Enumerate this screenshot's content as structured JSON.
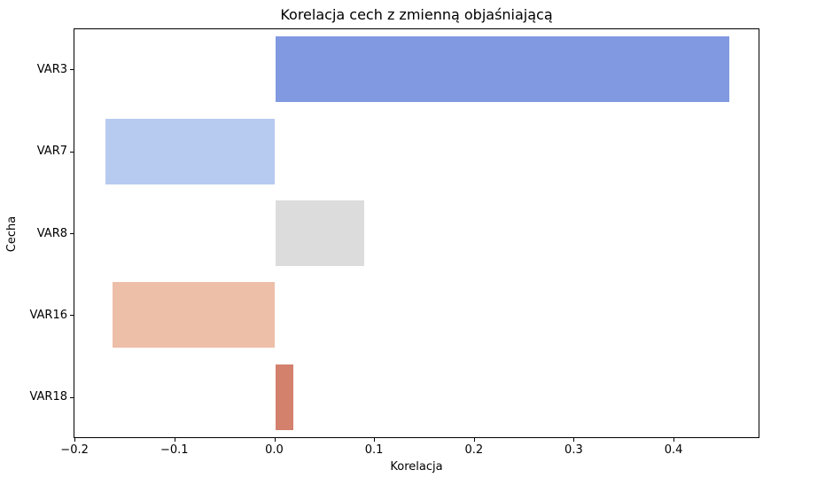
{
  "chart_data": {
    "type": "bar",
    "orientation": "horizontal",
    "title": "Korelacja cech z zmienną objaśniającą",
    "xlabel": "Korelacja",
    "ylabel": "Cecha",
    "categories": [
      "VAR3",
      "VAR7",
      "VAR8",
      "VAR16",
      "VAR18"
    ],
    "values": [
      0.455,
      -0.17,
      0.089,
      -0.163,
      0.018
    ],
    "bar_colors": [
      "#8199e1",
      "#b7caf0",
      "#dcdcdc",
      "#edbea8",
      "#d3806d"
    ],
    "palette_name": "coolwarm",
    "xlim": [
      -0.201,
      0.486
    ],
    "xticks": [
      -0.2,
      -0.1,
      0.0,
      0.1,
      0.2,
      0.3,
      0.4
    ],
    "xtick_labels": [
      "−0.2",
      "−0.1",
      "0.0",
      "0.1",
      "0.2",
      "0.3",
      "0.4"
    ],
    "bar_fraction": 0.8,
    "grid": false,
    "legend": null,
    "background_color": "#ffffff",
    "axis_color": "#000000"
  }
}
